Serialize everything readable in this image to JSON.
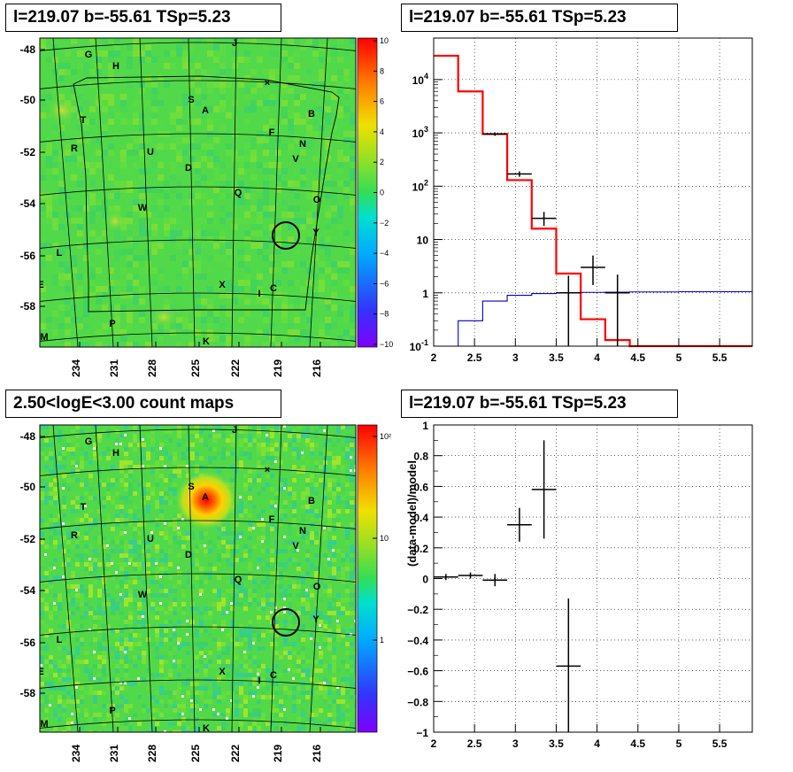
{
  "titles": {
    "p1": "l=219.07 b=-55.61 TSp=5.23",
    "p2": "l=219.07 b=-55.61 TSp=5.23",
    "p3": "2.50<logE<3.00 count maps",
    "p4": "l=219.07 b=-55.61 TSp=5.23"
  },
  "colors": {
    "map_bg": "#52d94a",
    "model_red": "#ff0000",
    "model_blue": "#0000cc",
    "data_black": "#000000",
    "grid": "#000000"
  },
  "chart_data": [
    {
      "type": "heatmap",
      "name": "residual-map",
      "x_ticks": [
        "234",
        "231",
        "228",
        "225",
        "222",
        "219",
        "216"
      ],
      "y_ticks": [
        "-48",
        "-50",
        "-52",
        "-54",
        "-56",
        "-58"
      ],
      "colorbar": {
        "min": -10,
        "max": 10,
        "ticks": [
          "10",
          "8",
          "6",
          "4",
          "2",
          "0",
          "−2",
          "−4",
          "−6",
          "−8",
          "−10"
        ]
      },
      "sources": [
        "G",
        "H",
        "J",
        "S",
        "A",
        "B",
        "T",
        "F",
        "N",
        "R",
        "U",
        "V",
        "D",
        "Q",
        "O",
        "W",
        "Y",
        "L",
        "X",
        "C",
        "I",
        "E",
        "P",
        "M",
        "K"
      ],
      "marker": {
        "l": 219.07,
        "b": -55.61
      }
    },
    {
      "type": "line",
      "name": "counts-spectrum",
      "xlim": [
        2,
        5.9
      ],
      "yscale": "log",
      "ylim": [
        0.1,
        60000
      ],
      "x_ticks": [
        "2",
        "2.5",
        "3",
        "3.5",
        "4",
        "4.5",
        "5",
        "5.5"
      ],
      "y_ticks": [
        "10^-1",
        "1",
        "10",
        "10^2",
        "10^3",
        "10^4"
      ],
      "series": [
        {
          "color": "#ff0000",
          "bins": [
            2.0,
            2.3,
            2.6,
            2.9,
            3.2,
            3.5,
            3.8,
            4.1,
            4.4,
            4.7,
            5.0,
            5.3,
            5.6,
            5.9
          ],
          "values": [
            28000,
            6000,
            950,
            130,
            16,
            2.3,
            0.32,
            0.13,
            0.1,
            0.1,
            0.1,
            0.1,
            0.1
          ]
        },
        {
          "color": "#0000cc",
          "bins": [
            2.0,
            2.3,
            2.6,
            2.9,
            3.2,
            3.5,
            3.8,
            4.1,
            4.4,
            4.7,
            5.0,
            5.3,
            5.6,
            5.9
          ],
          "values": [
            0.001,
            0.3,
            0.7,
            0.9,
            0.97,
            1.0,
            1.02,
            1.03,
            1.04,
            1.04,
            1.05,
            1.05,
            1.05
          ]
        }
      ],
      "points": [
        {
          "x": 2.75,
          "y": 950,
          "xerr": 0.15,
          "ylo": 880,
          "yhi": 1020
        },
        {
          "x": 3.05,
          "y": 170,
          "xerr": 0.15,
          "ylo": 150,
          "yhi": 190
        },
        {
          "x": 3.35,
          "y": 25,
          "xerr": 0.15,
          "ylo": 18,
          "yhi": 33
        },
        {
          "x": 3.65,
          "y": 1.0,
          "xerr": 0.15,
          "ylo": 0.1,
          "yhi": 2.1
        },
        {
          "x": 3.95,
          "y": 3.0,
          "xerr": 0.15,
          "ylo": 1.4,
          "yhi": 5.0
        },
        {
          "x": 4.25,
          "y": 1.0,
          "xerr": 0.15,
          "ylo": 0.1,
          "yhi": 2.2
        }
      ]
    },
    {
      "type": "heatmap",
      "name": "count-map",
      "x_ticks": [
        "234",
        "231",
        "228",
        "225",
        "222",
        "219",
        "216"
      ],
      "y_ticks": [
        "-48",
        "-50",
        "-52",
        "-54",
        "-56",
        "-58"
      ],
      "colorbar": {
        "scale": "log",
        "ticks": [
          "10²",
          "10",
          "1"
        ]
      },
      "sources": [
        "G",
        "H",
        "J",
        "S",
        "A",
        "B",
        "T",
        "F",
        "N",
        "R",
        "U",
        "V",
        "D",
        "Q",
        "O",
        "W",
        "Y",
        "L",
        "X",
        "C",
        "I",
        "E",
        "P",
        "M",
        "K"
      ],
      "marker": {
        "l": 219.07,
        "b": -55.61
      }
    },
    {
      "type": "scatter",
      "name": "residual-ratio",
      "xlabel": "",
      "ylabel": "(data-model)/model",
      "xlim": [
        2,
        5.9
      ],
      "ylim": [
        -1,
        1
      ],
      "x_ticks": [
        "2",
        "2.5",
        "3",
        "3.5",
        "4",
        "4.5",
        "5",
        "5.5"
      ],
      "y_ticks": [
        "1",
        "0.8",
        "0.6",
        "0.4",
        "0.2",
        "0",
        "−0.2",
        "−0.4",
        "−0.6",
        "−0.8",
        "−1"
      ],
      "points": [
        {
          "x": 2.15,
          "y": 0.01,
          "xerr": 0.15,
          "ylo": -0.01,
          "yhi": 0.03
        },
        {
          "x": 2.45,
          "y": 0.02,
          "xerr": 0.15,
          "ylo": 0.0,
          "yhi": 0.04
        },
        {
          "x": 2.75,
          "y": -0.01,
          "xerr": 0.15,
          "ylo": -0.05,
          "yhi": 0.03
        },
        {
          "x": 3.05,
          "y": 0.35,
          "xerr": 0.15,
          "ylo": 0.24,
          "yhi": 0.46
        },
        {
          "x": 3.35,
          "y": 0.58,
          "xerr": 0.15,
          "ylo": 0.26,
          "yhi": 0.9
        },
        {
          "x": 3.65,
          "y": -0.57,
          "xerr": 0.15,
          "ylo": -1.0,
          "yhi": -0.13
        }
      ]
    }
  ]
}
